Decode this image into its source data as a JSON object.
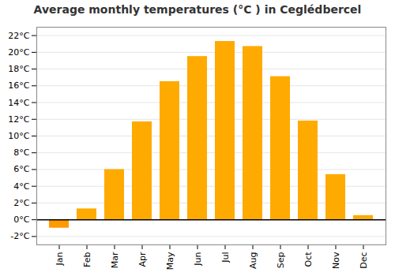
{
  "chart_data": {
    "type": "bar",
    "title": "Average monthly temperatures (°C ) in Ceglédbercel",
    "categories": [
      "Jan",
      "Feb",
      "Mar",
      "Apr",
      "May",
      "Jun",
      "Jul",
      "Aug",
      "Sep",
      "Oct",
      "Nov",
      "Dec"
    ],
    "values": [
      -1.0,
      1.3,
      6.0,
      11.7,
      16.5,
      19.5,
      21.3,
      20.7,
      17.1,
      11.8,
      5.4,
      0.5
    ],
    "colors": [
      "#FF9900",
      "#FFAA00",
      "#FFAA00",
      "#FFAA00",
      "#FFAA00",
      "#FFAA00",
      "#FFAA00",
      "#FFAA00",
      "#FFAA00",
      "#FFAA00",
      "#FFAA00",
      "#FFAA00"
    ],
    "ylim": [
      -3,
      23
    ],
    "yticks": [
      {
        "value": -2,
        "label": "-2°C"
      },
      {
        "value": 0,
        "label": "0°C"
      },
      {
        "value": 2,
        "label": "2°C"
      },
      {
        "value": 4,
        "label": "4°C"
      },
      {
        "value": 6,
        "label": "6°C"
      },
      {
        "value": 8,
        "label": "8°C"
      },
      {
        "value": 10,
        "label": "10°C"
      },
      {
        "value": 12,
        "label": "12°C"
      },
      {
        "value": 14,
        "label": "14°C"
      },
      {
        "value": 16,
        "label": "16°C"
      },
      {
        "value": 18,
        "label": "18°C"
      },
      {
        "value": 20,
        "label": "20°C"
      },
      {
        "value": 22,
        "label": "22°C"
      }
    ],
    "grid": true
  }
}
